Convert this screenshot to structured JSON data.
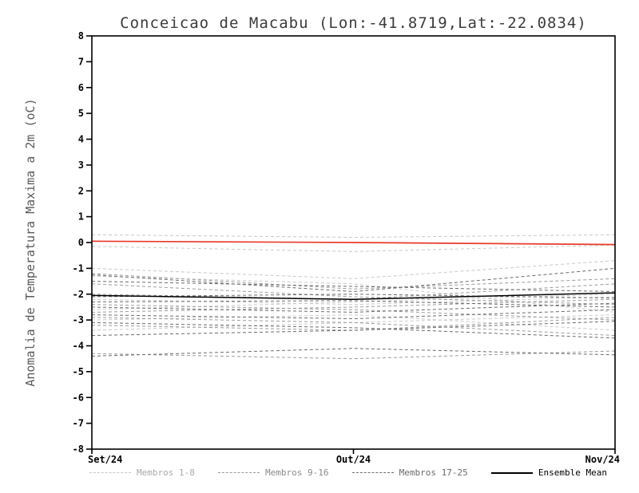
{
  "chart_data": {
    "type": "line",
    "title": "Conceicao de Macabu (Lon:-41.8719,Lat:-22.0834)",
    "ylabel": "Anomalia de Temperatura Maxima a 2m (oC)",
    "xlabel": "",
    "ylim": [
      -8,
      8
    ],
    "ytick_step": 1,
    "grid": false,
    "legend_position": "bottom",
    "x_categories": [
      "Set/24",
      "Out/24",
      "Nov/24"
    ],
    "groups": [
      {
        "name": "Membros 1-8",
        "color": "#c9c9c9",
        "style": "dashed",
        "members": [
          [
            0.3,
            0.2,
            0.3
          ],
          [
            -0.15,
            -0.35,
            -0.1
          ],
          [
            -1.0,
            -1.4,
            -0.7
          ],
          [
            -1.3,
            -1.6,
            -2.7
          ],
          [
            -2.2,
            -2.4,
            -2.1
          ],
          [
            -2.6,
            -2.3,
            -2.0
          ],
          [
            -3.0,
            -2.8,
            -3.4
          ],
          [
            -3.4,
            -3.1,
            -2.8
          ]
        ]
      },
      {
        "name": "Membros 9-16",
        "color": "#9a9a9a",
        "style": "dashed",
        "members": [
          [
            -1.2,
            -1.8,
            -1.4
          ],
          [
            -1.6,
            -2.1,
            -2.4
          ],
          [
            -2.0,
            -2.2,
            -1.6
          ],
          [
            -2.4,
            -2.6,
            -3.0
          ],
          [
            -2.7,
            -2.5,
            -2.2
          ],
          [
            -2.9,
            -3.1,
            -3.6
          ],
          [
            -3.2,
            -3.4,
            -2.9
          ],
          [
            -4.3,
            -4.5,
            -4.2
          ]
        ]
      },
      {
        "name": "Membros 17-25",
        "color": "#6b6b6b",
        "style": "dashed",
        "members": [
          [
            -1.25,
            -1.9,
            -1.0
          ],
          [
            -1.5,
            -1.7,
            -1.9
          ],
          [
            -2.1,
            -2.0,
            -2.15
          ],
          [
            -2.3,
            -2.25,
            -2.5
          ],
          [
            -2.5,
            -2.7,
            -2.35
          ],
          [
            -2.8,
            -2.95,
            -2.6
          ],
          [
            -3.1,
            -3.3,
            -3.7
          ],
          [
            -3.6,
            -3.4,
            -3.05
          ],
          [
            -4.4,
            -4.1,
            -4.35
          ]
        ]
      }
    ],
    "ensemble_mean": {
      "name": "Ensemble Mean",
      "color": "#000000",
      "style": "solid",
      "values": [
        -2.05,
        -2.2,
        -1.95
      ]
    },
    "reference_line": {
      "name": "reference-zero-line",
      "color": "#e8392a",
      "style": "solid",
      "values": [
        0.05,
        0.0,
        -0.08
      ]
    }
  },
  "legend": {
    "items": [
      {
        "label": "Membros 1-8",
        "color": "#c9c9c9",
        "label_color": "#aaaaaa",
        "style": "dashed"
      },
      {
        "label": "Membros 9-16",
        "color": "#9a9a9a",
        "label_color": "#8a8a8a",
        "style": "dashed"
      },
      {
        "label": "Membros 17-25",
        "color": "#6b6b6b",
        "label_color": "#6b6b6b",
        "style": "dashed"
      },
      {
        "label": "Ensemble Mean",
        "color": "#000000",
        "label_color": "#000000",
        "style": "solid"
      }
    ]
  }
}
